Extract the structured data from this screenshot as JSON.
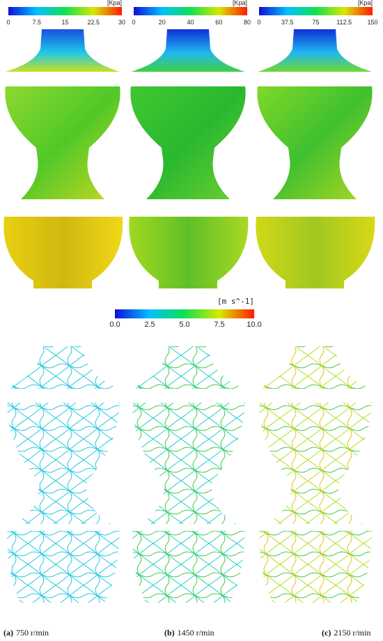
{
  "pressure_colorbars": [
    {
      "unit": "[Kpa]",
      "range": [
        0,
        30
      ],
      "ticks": [
        0,
        7.5,
        15,
        22.5,
        30
      ]
    },
    {
      "unit": "[Kpa]",
      "range": [
        0,
        80
      ],
      "ticks": [
        0,
        20,
        40,
        60,
        80
      ]
    },
    {
      "unit": "[Kpa]",
      "range": [
        0,
        150
      ],
      "ticks": [
        0,
        37.5,
        75,
        112.5,
        150
      ]
    }
  ],
  "velocity_colorbar": {
    "unit": "[m s^-1]",
    "range": [
      0,
      10
    ],
    "ticks": [
      {
        "value": 0,
        "label": "0.0"
      },
      2.5,
      {
        "value": 5,
        "label": "5.0"
      },
      7.5,
      {
        "value": 10,
        "label": "10.0"
      }
    ]
  },
  "captions": [
    {
      "label": "(a)",
      "text": "750 r/min"
    },
    {
      "label": "(b)",
      "text": "1450 r/min"
    },
    {
      "label": "(c)",
      "text": "2150 r/min"
    }
  ]
}
